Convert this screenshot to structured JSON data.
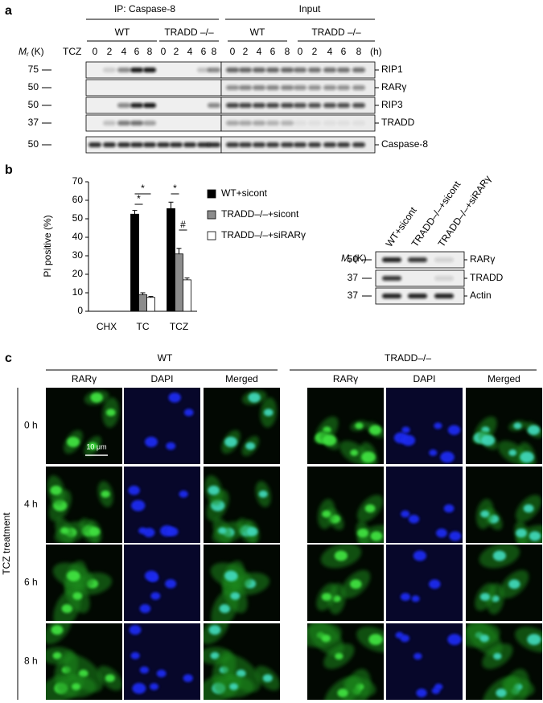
{
  "panel_a": {
    "label": "a",
    "ip_header": "IP: Caspase-8",
    "input_header": "Input",
    "groups": [
      "WT",
      "TRADD –/–",
      "WT",
      "TRADD –/–"
    ],
    "mr": {
      "symbol": "M",
      "subscript": "r",
      "unit": "(K)"
    },
    "treatment": "TCZ",
    "timepoints": [
      0,
      2,
      4,
      6,
      8
    ],
    "time_unit": "(h)",
    "blots": [
      {
        "marker": 75,
        "protein": "RIP1"
      },
      {
        "marker": 50,
        "protein": "RARγ"
      },
      {
        "marker": 50,
        "protein": "RIP3"
      },
      {
        "marker": 37,
        "protein": "TRADD"
      },
      {
        "marker": 50,
        "protein": "Caspase-8"
      }
    ]
  },
  "panel_b": {
    "label": "b",
    "chart_data": {
      "type": "bar",
      "y_label": "PI positive (%)",
      "categories": [
        "CHX",
        "TC",
        "TCZ"
      ],
      "series": [
        {
          "name": "WT+sicont",
          "color": "#000000",
          "values": [
            0,
            52.5,
            55.5
          ],
          "errors": [
            0,
            2,
            3.5
          ]
        },
        {
          "name": "TRADD–/–+sicont",
          "color": "#8c8c8c",
          "values": [
            0,
            9,
            31
          ],
          "errors": [
            0,
            1,
            3
          ]
        },
        {
          "name": "TRADD–/–+siRARγ",
          "color": "#ffffff",
          "values": [
            0,
            7.5,
            17
          ],
          "errors": [
            0,
            0.5,
            1
          ]
        }
      ],
      "ylim": [
        0,
        70
      ],
      "yticks": [
        0,
        10,
        20,
        30,
        40,
        50,
        60,
        70
      ],
      "significance_marks": [
        "*",
        "*",
        "*",
        "#"
      ]
    },
    "blot": {
      "mr": {
        "symbol": "M",
        "subscript": "r",
        "unit": "(K)"
      },
      "lanes": [
        "WT+sicont",
        "TRADD–/–+sicont",
        "TRADD–/–+siRARγ"
      ],
      "rows": [
        {
          "marker": 50,
          "protein": "RARγ"
        },
        {
          "marker": 37,
          "protein": "TRADD"
        },
        {
          "marker": 37,
          "protein": "Actin"
        }
      ]
    }
  },
  "panel_c": {
    "label": "c",
    "genotypes": [
      "WT",
      "TRADD–/–"
    ],
    "channels": [
      "RARγ",
      "DAPI",
      "Merged"
    ],
    "timepoints": [
      "0 h",
      "4 h",
      "6 h",
      "8 h"
    ],
    "treatment": "TCZ treatment",
    "scale_bar": "10 μm"
  }
}
